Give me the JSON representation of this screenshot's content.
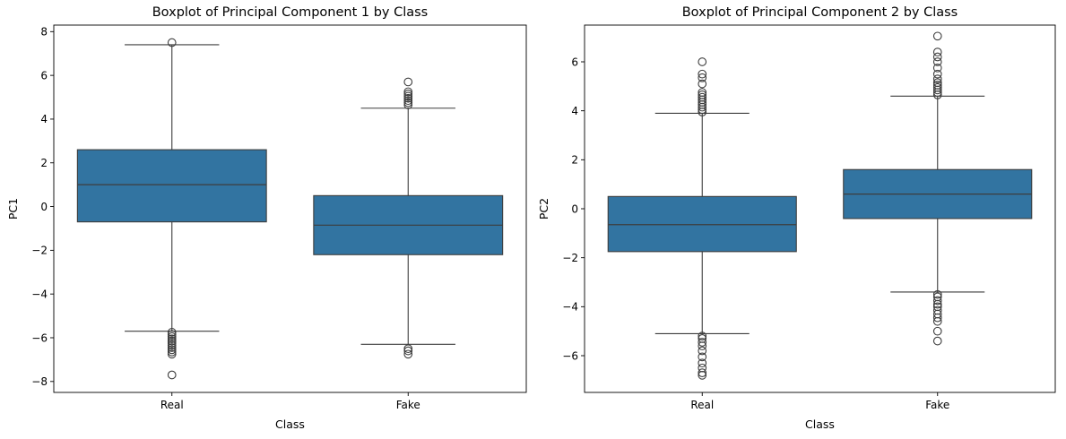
{
  "colors": {
    "box_fill": "#3274a1",
    "line": "#3d3d3d",
    "frame": "#000000",
    "outlier_edge": "#3d3d3d"
  },
  "chart_data": [
    {
      "type": "boxplot",
      "title": "Boxplot of Principal Component 1 by Class",
      "xlabel": "Class",
      "ylabel": "PC1",
      "ylim": [
        -8.5,
        8.3
      ],
      "yticks": [
        -8,
        -6,
        -4,
        -2,
        0,
        2,
        4,
        6,
        8
      ],
      "ytick_labels": [
        "−8",
        "−6",
        "−4",
        "−2",
        "0",
        "2",
        "4",
        "6",
        "8"
      ],
      "categories": [
        "Real",
        "Fake"
      ],
      "grid": false,
      "boxes": [
        {
          "category": "Real",
          "whisker_low": -5.7,
          "q1": -0.7,
          "median": 1.0,
          "q3": 2.6,
          "whisker_high": 7.4,
          "outliers": [
            7.5,
            -5.75,
            -5.85,
            -5.95,
            -6.05,
            -6.15,
            -6.25,
            -6.35,
            -6.45,
            -6.55,
            -6.65,
            -6.75,
            -7.7
          ]
        },
        {
          "category": "Fake",
          "whisker_low": -6.3,
          "q1": -2.2,
          "median": -0.85,
          "q3": 0.5,
          "whisker_high": 4.5,
          "outliers": [
            5.7,
            5.25,
            5.15,
            5.05,
            4.95,
            4.85,
            4.75,
            4.65,
            -6.5,
            -6.6,
            -6.75
          ]
        }
      ]
    },
    {
      "type": "boxplot",
      "title": "Boxplot of Principal Component 2 by Class",
      "xlabel": "Class",
      "ylabel": "PC2",
      "ylim": [
        -7.5,
        7.5
      ],
      "yticks": [
        -6,
        -4,
        -2,
        0,
        2,
        4,
        6
      ],
      "ytick_labels": [
        "−6",
        "−4",
        "−2",
        "0",
        "2",
        "4",
        "6"
      ],
      "categories": [
        "Real",
        "Fake"
      ],
      "grid": false,
      "boxes": [
        {
          "category": "Real",
          "whisker_low": -5.1,
          "q1": -1.75,
          "median": -0.65,
          "q3": 0.5,
          "whisker_high": 3.9,
          "outliers": [
            6.0,
            5.5,
            5.35,
            5.1,
            4.75,
            4.65,
            4.55,
            4.45,
            4.35,
            4.25,
            4.15,
            4.05,
            3.95,
            -5.2,
            -5.3,
            -5.45,
            -5.6,
            -5.8,
            -6.05,
            -6.3,
            -6.5,
            -6.7,
            -6.8
          ]
        },
        {
          "category": "Fake",
          "whisker_low": -3.4,
          "q1": -0.4,
          "median": 0.6,
          "q3": 1.6,
          "whisker_high": 4.6,
          "outliers": [
            7.05,
            6.4,
            6.2,
            6.0,
            5.75,
            5.5,
            5.3,
            5.15,
            5.05,
            4.95,
            4.85,
            4.75,
            4.65,
            -3.5,
            -3.6,
            -3.75,
            -3.9,
            -4.0,
            -4.15,
            -4.3,
            -4.45,
            -4.6,
            -5.0,
            -5.4
          ]
        }
      ]
    }
  ]
}
